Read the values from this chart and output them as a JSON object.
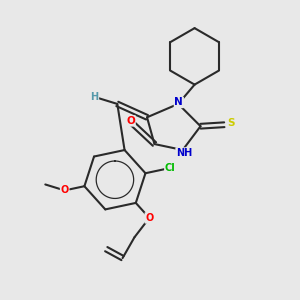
{
  "bg_color": "#e8e8e8",
  "bond_color": "#2a2a2a",
  "atom_colors": {
    "O": "#ff0000",
    "N": "#0000cc",
    "S": "#cccc00",
    "Cl": "#00bb00",
    "H": "#5599aa"
  },
  "figsize": [
    3.0,
    3.0
  ],
  "dpi": 100
}
